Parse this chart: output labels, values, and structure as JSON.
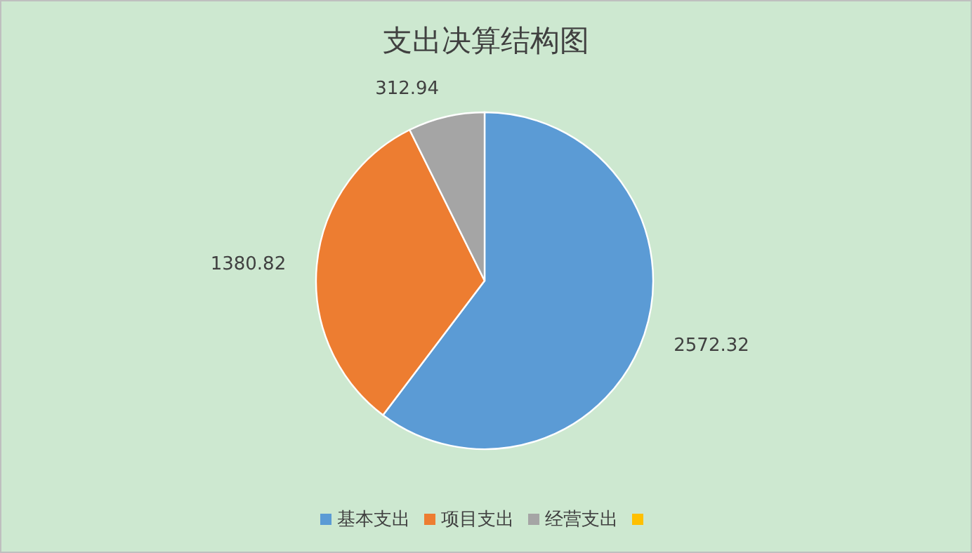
{
  "chart_data": {
    "type": "pie",
    "title": "支出决算结构图",
    "categories": [
      "基本支出",
      "项目支出",
      "经营支出",
      null
    ],
    "values": [
      2572.32,
      1380.82,
      312.94,
      null
    ],
    "colors": [
      "#5b9bd5",
      "#ed7d31",
      "#a5a5a5",
      "#ffc000"
    ],
    "data_labels": true,
    "legend": "bottom"
  }
}
